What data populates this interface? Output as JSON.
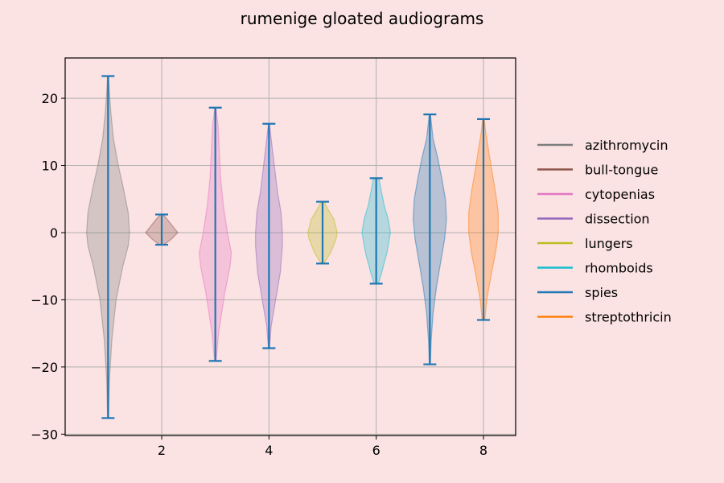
{
  "chart_data": {
    "type": "violin",
    "title": "rumenige gloated audiograms",
    "xlabel": "",
    "ylabel": "",
    "xlim": [
      0.2,
      8.6
    ],
    "ylim": [
      -30.2,
      26.0
    ],
    "xticks": [
      2,
      4,
      6,
      8
    ],
    "yticks": [
      -30,
      -20,
      -10,
      0,
      10,
      20
    ],
    "grid": true,
    "legend_placement": "right",
    "stat_color": "#1f77b4",
    "series": [
      {
        "name": "azithromycin",
        "position": 1,
        "color": "#7f7f7f",
        "min": -27.6,
        "max": 23.3,
        "profile": [
          [
            -27.6,
            0.02
          ],
          [
            -22,
            0.05
          ],
          [
            -16,
            0.14
          ],
          [
            -10,
            0.3
          ],
          [
            -5,
            0.55
          ],
          [
            -2,
            0.75
          ],
          [
            0,
            0.8
          ],
          [
            3,
            0.75
          ],
          [
            7,
            0.55
          ],
          [
            10,
            0.38
          ],
          [
            14,
            0.2
          ],
          [
            18,
            0.1
          ],
          [
            21,
            0.05
          ],
          [
            23.3,
            0.02
          ]
        ]
      },
      {
        "name": "bull-tongue",
        "position": 2,
        "color": "#8c564b",
        "min": -1.8,
        "max": 2.7,
        "profile": [
          [
            -1.8,
            0.08
          ],
          [
            -1,
            0.35
          ],
          [
            0,
            0.6
          ],
          [
            1,
            0.4
          ],
          [
            2,
            0.2
          ],
          [
            2.7,
            0.05
          ]
        ]
      },
      {
        "name": "cytopenias",
        "position": 3,
        "color": "#e377c2",
        "min": -19.1,
        "max": 18.6,
        "profile": [
          [
            -19.1,
            0.03
          ],
          [
            -15,
            0.12
          ],
          [
            -9,
            0.35
          ],
          [
            -5,
            0.55
          ],
          [
            -3,
            0.6
          ],
          [
            0,
            0.45
          ],
          [
            4,
            0.3
          ],
          [
            8,
            0.2
          ],
          [
            12,
            0.15
          ],
          [
            16,
            0.1
          ],
          [
            18.6,
            0.02
          ]
        ]
      },
      {
        "name": "dissection",
        "position": 4,
        "color": "#9467bd",
        "min": -17.2,
        "max": 16.2,
        "profile": [
          [
            -17.2,
            0.02
          ],
          [
            -14,
            0.08
          ],
          [
            -10,
            0.25
          ],
          [
            -6,
            0.42
          ],
          [
            -2,
            0.5
          ],
          [
            0,
            0.5
          ],
          [
            3,
            0.45
          ],
          [
            6,
            0.32
          ],
          [
            10,
            0.2
          ],
          [
            14,
            0.08
          ],
          [
            16.2,
            0.02
          ]
        ]
      },
      {
        "name": "lungers",
        "position": 5,
        "color": "#bcbd22",
        "min": -4.6,
        "max": 4.6,
        "profile": [
          [
            -4.6,
            0.05
          ],
          [
            -3,
            0.3
          ],
          [
            -1,
            0.5
          ],
          [
            0,
            0.55
          ],
          [
            2,
            0.42
          ],
          [
            3.5,
            0.2
          ],
          [
            4.6,
            0.05
          ]
        ]
      },
      {
        "name": "rhomboids",
        "position": 6,
        "color": "#17becf",
        "min": -7.6,
        "max": 8.1,
        "profile": [
          [
            -7.6,
            0.08
          ],
          [
            -6,
            0.2
          ],
          [
            -3,
            0.4
          ],
          [
            0,
            0.53
          ],
          [
            2,
            0.45
          ],
          [
            4,
            0.3
          ],
          [
            6,
            0.2
          ],
          [
            8.1,
            0.1
          ]
        ]
      },
      {
        "name": "spies",
        "position": 7,
        "color": "#1f77b4",
        "min": -19.6,
        "max": 17.6,
        "profile": [
          [
            -19.6,
            0.02
          ],
          [
            -16,
            0.05
          ],
          [
            -12,
            0.12
          ],
          [
            -8,
            0.25
          ],
          [
            -4,
            0.42
          ],
          [
            -1,
            0.55
          ],
          [
            2,
            0.62
          ],
          [
            5,
            0.58
          ],
          [
            8,
            0.45
          ],
          [
            11,
            0.3
          ],
          [
            14,
            0.12
          ],
          [
            17.6,
            0.02
          ]
        ]
      },
      {
        "name": "streptothricin",
        "position": 8,
        "color": "#ff7f0e",
        "min": -13.0,
        "max": 16.9,
        "profile": [
          [
            -13,
            0.05
          ],
          [
            -10,
            0.12
          ],
          [
            -6,
            0.3
          ],
          [
            -3,
            0.45
          ],
          [
            0,
            0.55
          ],
          [
            3,
            0.55
          ],
          [
            6,
            0.45
          ],
          [
            9,
            0.32
          ],
          [
            12,
            0.2
          ],
          [
            15,
            0.08
          ],
          [
            16.9,
            0.03
          ]
        ]
      }
    ]
  }
}
